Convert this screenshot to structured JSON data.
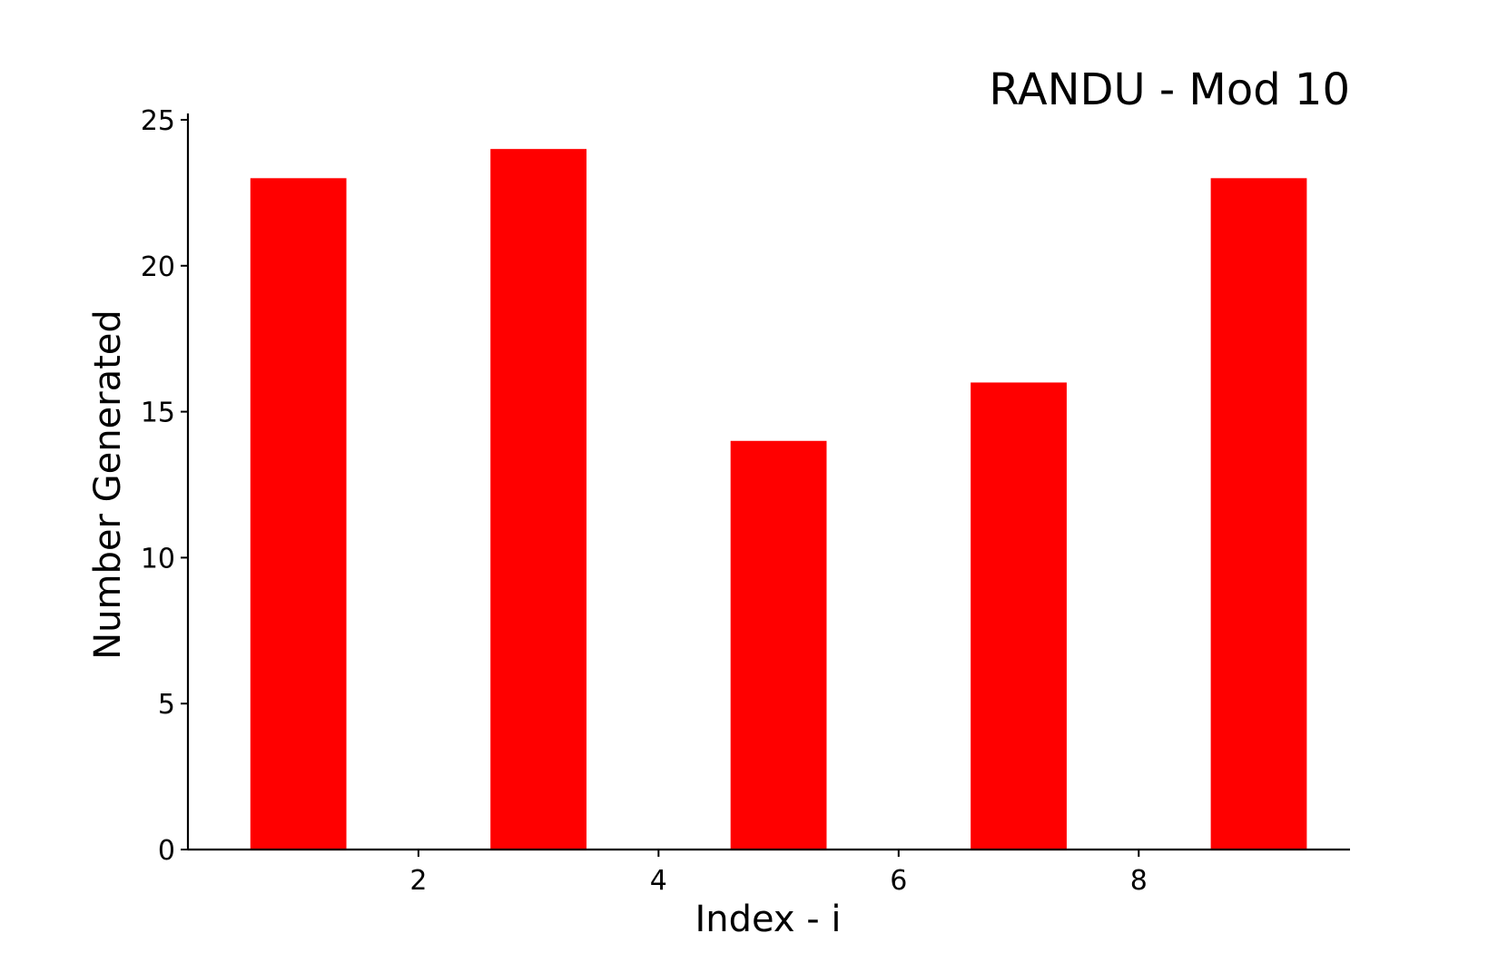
{
  "chart_data": {
    "type": "bar",
    "title": "RANDU - Mod 10",
    "xlabel": "Index - i",
    "ylabel": "Number Generated",
    "x": [
      1,
      3,
      5,
      7,
      9
    ],
    "values": [
      23,
      24,
      14,
      16,
      23
    ],
    "bar_width": 0.8,
    "xlim": [
      0.08,
      9.76
    ],
    "ylim": [
      0,
      25
    ],
    "xticks": [
      2,
      4,
      6,
      8
    ],
    "yticks": [
      0,
      5,
      10,
      15,
      20,
      25
    ],
    "xtick_labels": [
      "2",
      "4",
      "6",
      "8"
    ],
    "ytick_labels": [
      "0",
      "5",
      "10",
      "15",
      "20",
      "25"
    ],
    "bar_color": "#ff0000",
    "grid": false,
    "spines": [
      "left",
      "bottom"
    ]
  }
}
